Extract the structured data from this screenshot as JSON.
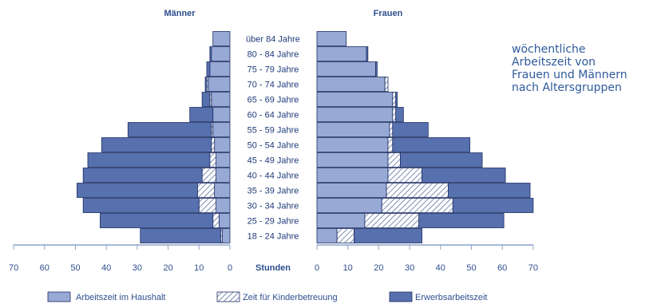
{
  "side_text": [
    "wöchentliche",
    "Arbeitszeit von",
    "Frauen und Männern",
    "nach Altersgruppen"
  ],
  "colors": {
    "haushalt": "#97a9d4",
    "kinder_hatch": "#5a6f9f",
    "erwerb": "#5770ae",
    "stroke": "#1f2f63",
    "axis": "#8aa1c9",
    "text": "#2f4f8f",
    "label": "#1f3a7a"
  },
  "chart_data": {
    "type": "bar",
    "subtype": "population-pyramid-stacked",
    "panel_titles": {
      "left": "Männer",
      "right": "Frauen"
    },
    "categories": [
      "18 - 24 Jahre",
      "25 - 29 Jahre",
      "30 - 34 Jahre",
      "35 - 39 Jahre",
      "40 - 44 Jahre",
      "45 - 49 Jahre",
      "50 - 54 Jahre",
      "55 - 59 Jahre",
      "60 - 64 Jahre",
      "65 - 69 Jahre",
      "70 - 74 Jahre",
      "75 - 79 Jahre",
      "80 - 84 Jahre",
      "über 84 Jahre"
    ],
    "xlabel": "Stunden",
    "xlim": [
      0,
      70
    ],
    "xticks": [
      0,
      10,
      20,
      30,
      40,
      50,
      60,
      70
    ],
    "series_names": [
      "Arbeitszeit im Haushalt",
      "Zeit für Kinderbetreuung",
      "Erwerbsarbeitszeit"
    ],
    "maenner": {
      "haushalt": [
        2.5,
        3.5,
        4.5,
        5.0,
        4.5,
        4.5,
        5.0,
        5.5,
        5.5,
        6.0,
        7.0,
        6.5,
        6.0,
        5.5
      ],
      "kinder": [
        0.5,
        2.0,
        5.5,
        5.5,
        4.5,
        2.0,
        1.0,
        0.5,
        0.0,
        0.5,
        0.5,
        0.0,
        0.0,
        0.0
      ],
      "erwerb": [
        26.0,
        36.5,
        37.5,
        39.0,
        38.5,
        39.5,
        35.5,
        27.0,
        7.5,
        2.5,
        0.5,
        1.0,
        0.5,
        0.0
      ]
    },
    "frauen": {
      "haushalt": [
        6.5,
        15.5,
        21.0,
        22.5,
        23.0,
        23.0,
        23.0,
        23.5,
        24.5,
        24.5,
        22.0,
        19.0,
        16.0,
        9.5
      ],
      "kinder": [
        5.5,
        17.5,
        23.0,
        20.0,
        11.0,
        4.0,
        1.5,
        1.0,
        1.0,
        1.0,
        1.0,
        0.0,
        0.0,
        0.0
      ],
      "erwerb": [
        22.0,
        27.5,
        26.0,
        26.5,
        27.0,
        26.5,
        25.0,
        11.5,
        2.5,
        0.5,
        0.0,
        0.5,
        0.5,
        0.0
      ]
    },
    "legend_position": "bottom",
    "grid": false
  }
}
